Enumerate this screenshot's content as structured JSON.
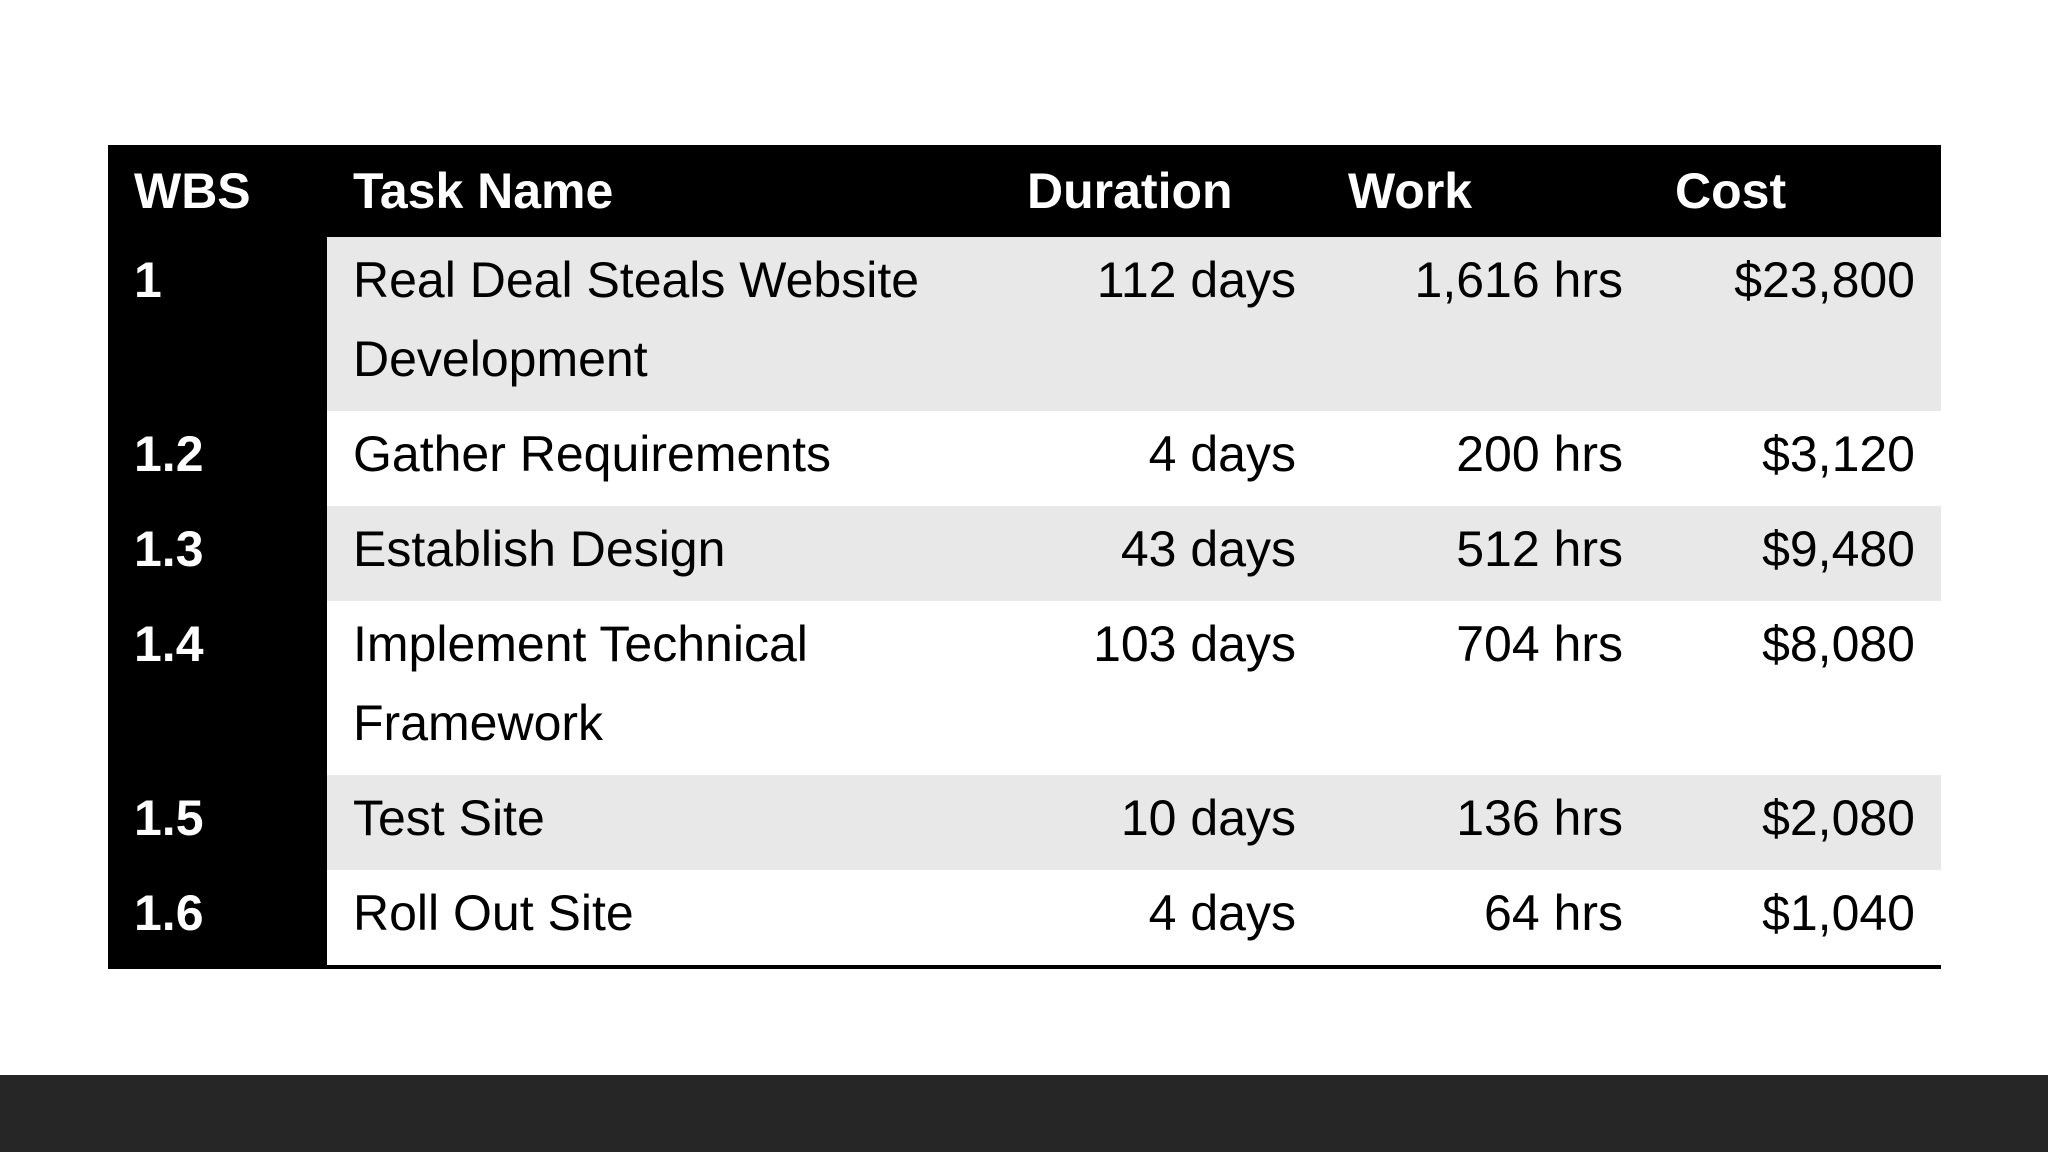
{
  "table": {
    "headers": {
      "wbs": "WBS",
      "task_name": "Task Name",
      "duration": "Duration",
      "work": "Work",
      "cost": "Cost"
    },
    "rows": [
      {
        "wbs": "1",
        "task_name": "Real Deal Steals Website Development",
        "duration": "112 days",
        "work": "1,616 hrs",
        "cost": "$23,800"
      },
      {
        "wbs": "1.2",
        "task_name": "Gather Requirements",
        "duration": "4 days",
        "work": "200 hrs",
        "cost": "$3,120"
      },
      {
        "wbs": "1.3",
        "task_name": "Establish Design",
        "duration": "43 days",
        "work": "512 hrs",
        "cost": "$9,480"
      },
      {
        "wbs": "1.4",
        "task_name": "Implement Technical Framework",
        "duration": "103 days",
        "work": "704 hrs",
        "cost": "$8,080"
      },
      {
        "wbs": "1.5",
        "task_name": "Test Site",
        "duration": "10 days",
        "work": "136 hrs",
        "cost": "$2,080"
      },
      {
        "wbs": "1.6",
        "task_name": "Roll Out Site",
        "duration": "4 days",
        "work": "64 hrs",
        "cost": "$1,040"
      }
    ]
  },
  "colors": {
    "header_bg": "#000000",
    "header_text": "#ffffff",
    "band_bg": "#e8e8e8",
    "footer_bar": "#262626"
  }
}
